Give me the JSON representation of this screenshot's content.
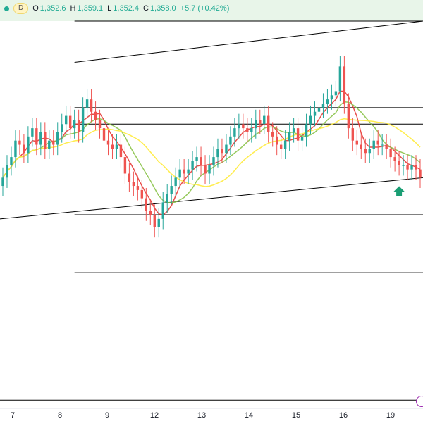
{
  "legend": {
    "interval": "D",
    "open_label": "O",
    "open": "1,352.6",
    "high_label": "H",
    "high": "1,359.1",
    "low_label": "L",
    "low": "1,352.4",
    "close_label": "C",
    "close": "1,358.0",
    "change": "+5.7 (+0.42%)"
  },
  "chart_data": {
    "type": "candlestick",
    "x_ticks": [
      "7",
      "8",
      "9",
      "12",
      "13",
      "14",
      "15",
      "16",
      "19"
    ],
    "ylim": [
      1302,
      1396
    ],
    "grid": false,
    "colors": {
      "up": "#26a69a",
      "down": "#ef5350",
      "ma_fast": "#e53935",
      "ma_mid": "#8bc34a",
      "ma_slow": "#ffeb3b",
      "arrow": "#1a9e74",
      "zone": "#e8f5e9"
    },
    "close": [
      1358,
      1361,
      1363,
      1367,
      1366,
      1364,
      1368,
      1370,
      1366,
      1369,
      1365,
      1367,
      1366,
      1369,
      1371,
      1373,
      1370,
      1372,
      1369,
      1375,
      1377,
      1374,
      1372,
      1370,
      1367,
      1366,
      1365,
      1366,
      1363,
      1359,
      1357,
      1356,
      1355,
      1353,
      1350,
      1349,
      1346,
      1348,
      1352,
      1354,
      1356,
      1358,
      1360,
      1359,
      1360,
      1362,
      1363,
      1361,
      1359,
      1361,
      1363,
      1365,
      1364,
      1366,
      1368,
      1370,
      1371,
      1370,
      1369,
      1370,
      1372,
      1371,
      1373,
      1369,
      1368,
      1366,
      1365,
      1367,
      1369,
      1370,
      1367,
      1368,
      1371,
      1373,
      1374,
      1375,
      1376,
      1377,
      1378,
      1379,
      1385,
      1376,
      1370,
      1367,
      1366,
      1365,
      1364,
      1365,
      1367,
      1366,
      1366,
      1365,
      1363,
      1362,
      1361,
      1361,
      1360,
      1361,
      1360,
      1358
    ],
    "reference_lines": [
      1396,
      1375,
      1371,
      1349,
      1335,
      1304
    ],
    "start_index": 17,
    "channel_upper": [
      1386,
      1396
    ],
    "channel_lower": [
      1348,
      1358
    ],
    "green_zone": [
      1396,
      1405
    ],
    "arrow_index": 94
  }
}
